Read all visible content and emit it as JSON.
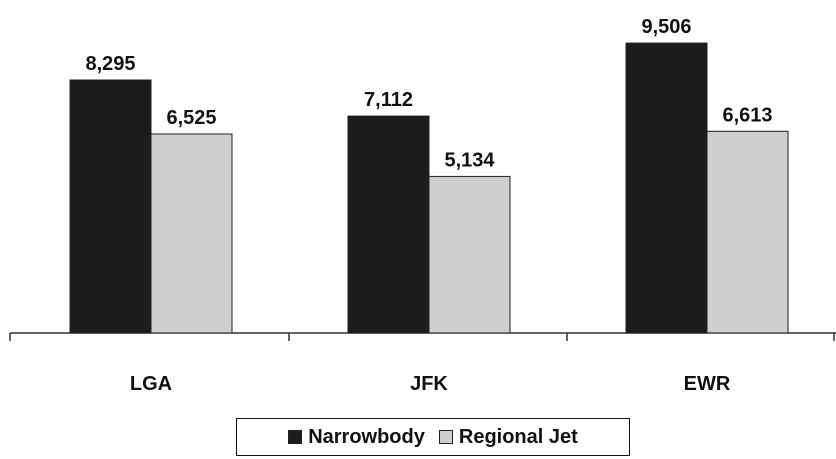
{
  "chart_data": {
    "type": "bar",
    "title": "",
    "xlabel": "",
    "ylabel": "",
    "categories": [
      "LGA",
      "JFK",
      "EWR"
    ],
    "series": [
      {
        "name": "Narrowbody",
        "values": [
          8295,
          7112,
          9506
        ],
        "labels": [
          "8,295",
          "7,112",
          "9,506"
        ]
      },
      {
        "name": "Regional Jet",
        "values": [
          6525,
          5134,
          6613
        ],
        "labels": [
          "6,525",
          "5,134",
          "6,613"
        ]
      }
    ],
    "ylim": [
      0,
      10000
    ],
    "grid": false,
    "legend_position": "bottom",
    "colors": {
      "Narrowbody": "#1c1c1c",
      "Regional Jet": "#cfcfcf"
    }
  }
}
